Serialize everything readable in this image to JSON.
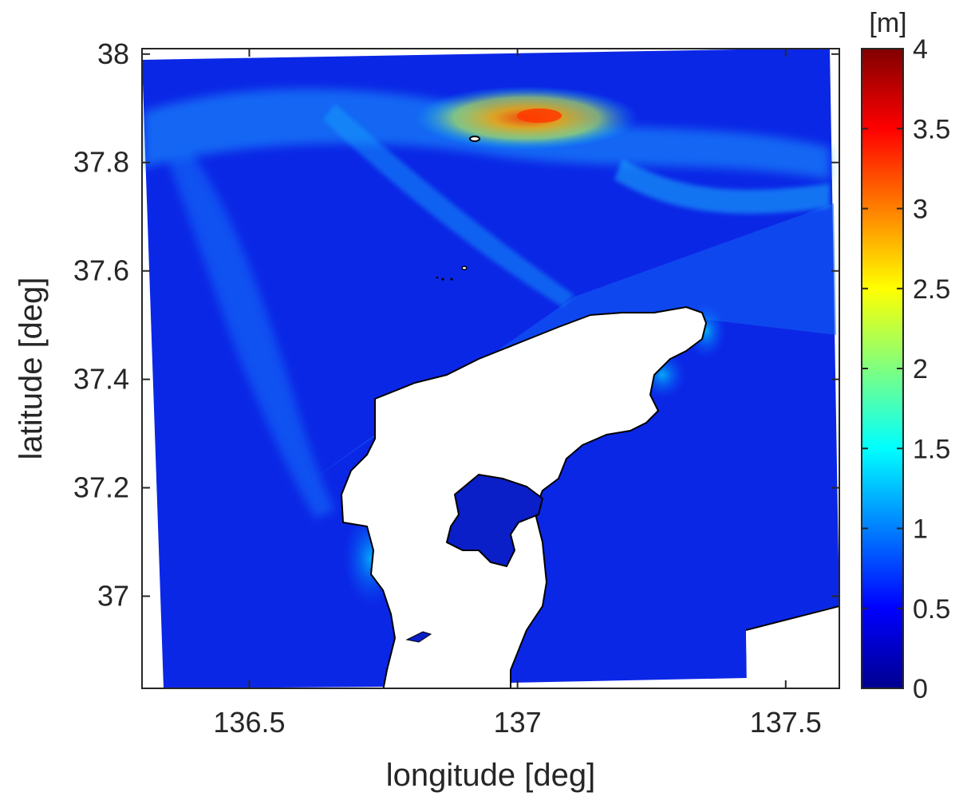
{
  "chart_data": {
    "type": "heatmap",
    "xlabel": "longitude [deg]",
    "ylabel": "latitude [deg]",
    "xlim": [
      136.3,
      137.6
    ],
    "ylim": [
      36.83,
      38.01
    ],
    "xticks": [
      136.5,
      137,
      137.5
    ],
    "xtick_labels": [
      "136.5",
      "137",
      "137.5"
    ],
    "yticks": [
      37,
      37.2,
      37.4,
      37.6,
      37.8,
      38
    ],
    "ytick_labels": [
      "37",
      "37.2",
      "37.4",
      "37.6",
      "37.8",
      "38"
    ],
    "colorbar": {
      "unit_label": "[m]",
      "range": [
        0,
        4
      ],
      "ticks": [
        0,
        0.5,
        1,
        1.5,
        2,
        2.5,
        3,
        3.5,
        4
      ],
      "tick_labels": [
        "0",
        "0.5",
        "1",
        "1.5",
        "2",
        "2.5",
        "3",
        "3.5",
        "4"
      ],
      "colormap": "jet"
    },
    "grid": false
  },
  "colors": {
    "deep_water": "#0a1fd8",
    "land": "#ffffff",
    "axis": "#262626"
  }
}
